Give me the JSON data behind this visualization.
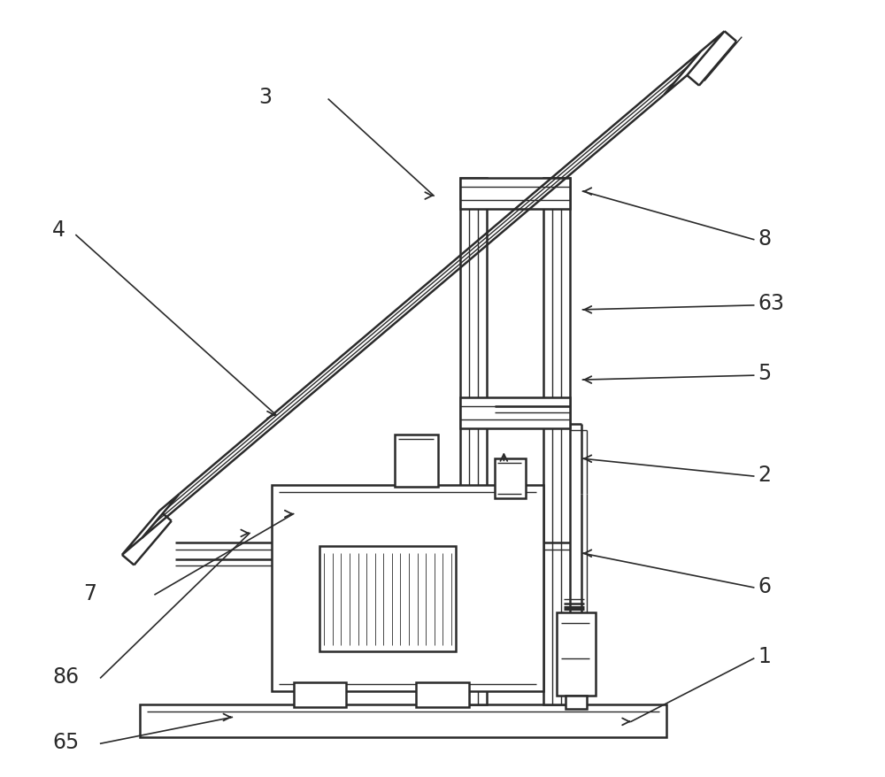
{
  "bg_color": "#ffffff",
  "lc": "#2a2a2a",
  "lw": 1.8,
  "tlw": 1.0,
  "label_fs": 17,
  "figsize": [
    10.0,
    8.79
  ],
  "dpi": 100
}
